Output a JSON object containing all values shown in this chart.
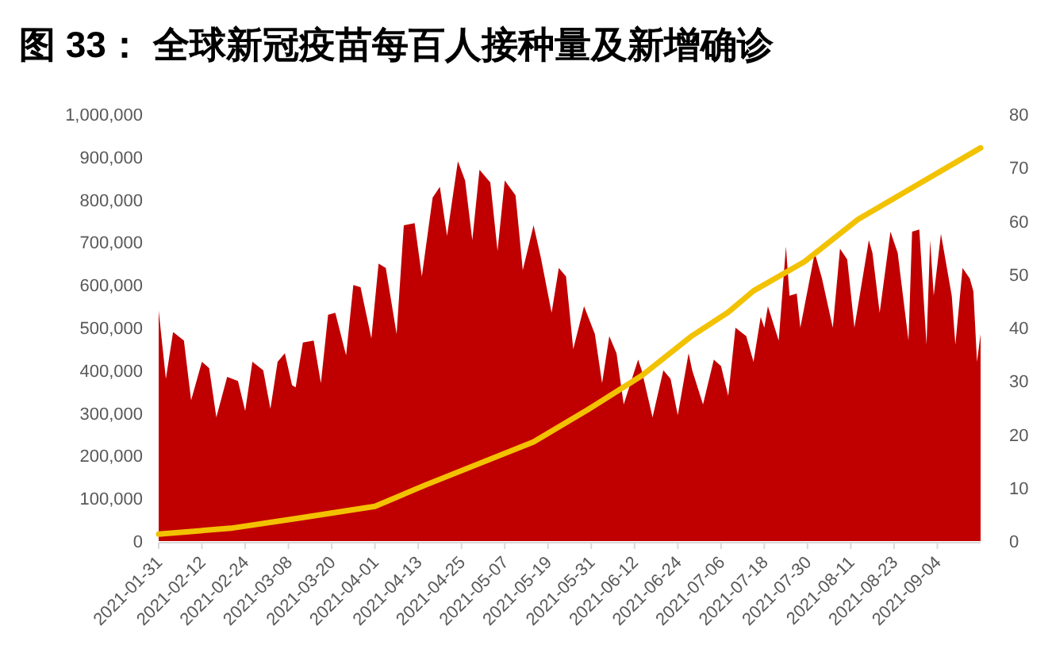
{
  "chart_data": {
    "type": "area",
    "title": "图 33：  全球新冠疫苗每百人接种量及新增确诊",
    "series": [
      {
        "color": "#c00000",
        "x": [
          "2021-01-31",
          "2021-02-02",
          "2021-02-04",
          "2021-02-07",
          "2021-02-09",
          "2021-02-12",
          "2021-02-14",
          "2021-02-16",
          "2021-02-19",
          "2021-02-22",
          "2021-02-24",
          "2021-02-26",
          "2021-03-01",
          "2021-03-03",
          "2021-03-05",
          "2021-03-07",
          "2021-03-09",
          "2021-03-10",
          "2021-03-12",
          "2021-03-15",
          "2021-03-17",
          "2021-03-19",
          "2021-03-21",
          "2021-03-24",
          "2021-03-26",
          "2021-03-28",
          "2021-03-31",
          "2021-04-02",
          "2021-04-04",
          "2021-04-07",
          "2021-04-09",
          "2021-04-12",
          "2021-04-14",
          "2021-04-17",
          "2021-04-19",
          "2021-04-21",
          "2021-04-24",
          "2021-04-26",
          "2021-04-28",
          "2021-04-30",
          "2021-05-03",
          "2021-05-05",
          "2021-05-07",
          "2021-05-10",
          "2021-05-12",
          "2021-05-15",
          "2021-05-17",
          "2021-05-20",
          "2021-05-22",
          "2021-05-24",
          "2021-05-26",
          "2021-05-29",
          "2021-06-01",
          "2021-06-03",
          "2021-06-05",
          "2021-06-07",
          "2021-06-09",
          "2021-06-13",
          "2021-06-14",
          "2021-06-17",
          "2021-06-20",
          "2021-06-22",
          "2021-06-24",
          "2021-06-27",
          "2021-06-28",
          "2021-07-01",
          "2021-07-04",
          "2021-07-06",
          "2021-07-08",
          "2021-07-10",
          "2021-07-13",
          "2021-07-15",
          "2021-07-17",
          "2021-07-18",
          "2021-07-19",
          "2021-07-22",
          "2021-07-24",
          "2021-07-25",
          "2021-07-27",
          "2021-07-28",
          "2021-08-01",
          "2021-08-03",
          "2021-08-06",
          "2021-08-08",
          "2021-08-10",
          "2021-08-12",
          "2021-08-16",
          "2021-08-17",
          "2021-08-19",
          "2021-08-22",
          "2021-08-24",
          "2021-08-27",
          "2021-08-28",
          "2021-08-30",
          "2021-09-01",
          "2021-09-02",
          "2021-09-03",
          "2021-09-05",
          "2021-09-08",
          "2021-09-09",
          "2021-09-11",
          "2021-09-13",
          "2021-09-14",
          "2021-09-15",
          "2021-09-16"
        ],
        "values": [
          540000,
          380000,
          490000,
          470000,
          330000,
          420000,
          405000,
          290000,
          385000,
          375000,
          305000,
          420000,
          400000,
          310000,
          420000,
          440000,
          365000,
          360000,
          465000,
          470000,
          370000,
          530000,
          535000,
          435000,
          600000,
          595000,
          475000,
          650000,
          640000,
          485000,
          740000,
          745000,
          620000,
          805000,
          830000,
          715000,
          890000,
          845000,
          705000,
          870000,
          840000,
          680000,
          845000,
          810000,
          635000,
          740000,
          665000,
          535000,
          640000,
          620000,
          450000,
          550000,
          485000,
          370000,
          480000,
          440000,
          320000,
          425000,
          400000,
          290000,
          400000,
          380000,
          295000,
          440000,
          400000,
          320000,
          425000,
          410000,
          340000,
          500000,
          480000,
          420000,
          525000,
          500000,
          550000,
          470000,
          690000,
          575000,
          580000,
          500000,
          675000,
          615000,
          500000,
          685000,
          660000,
          500000,
          705000,
          675000,
          535000,
          725000,
          675000,
          470000,
          725000,
          730000,
          460000,
          705000,
          575000,
          720000,
          575000,
          460000,
          640000,
          615000,
          585000,
          420000,
          485000
        ]
      },
      {
        "type": "line",
        "axis": "y2",
        "color": "#f2c200",
        "x": [
          "2021-01-31",
          "2021-02-20",
          "2021-03-11",
          "2021-04-01",
          "2021-04-15",
          "2021-05-15",
          "2021-05-30",
          "2021-06-14",
          "2021-06-28",
          "2021-07-08",
          "2021-07-15",
          "2021-07-29",
          "2021-08-13",
          "2021-08-28",
          "2021-09-16"
        ],
        "values": [
          1.3,
          2.4,
          4.3,
          6.5,
          10.5,
          18.6,
          24.6,
          31.0,
          38.5,
          42.9,
          46.9,
          52.3,
          60.3,
          66.2,
          73.7
        ]
      }
    ],
    "xlim": [
      "2021-01-31",
      "2021-09-16"
    ],
    "xticks": [
      "2021-01-31",
      "2021-02-12",
      "2021-02-24",
      "2021-03-08",
      "2021-03-20",
      "2021-04-01",
      "2021-04-13",
      "2021-04-25",
      "2021-05-07",
      "2021-05-19",
      "2021-05-31",
      "2021-06-12",
      "2021-06-24",
      "2021-07-06",
      "2021-07-18",
      "2021-07-30",
      "2021-08-11",
      "2021-08-23",
      "2021-09-04"
    ],
    "ylim": [
      0,
      1000000
    ],
    "yticks": [
      0,
      {
        "value": 100000,
        "label": "100,000"
      },
      {
        "value": 200000,
        "label": "200,000"
      },
      {
        "value": 300000,
        "label": "300,000"
      },
      {
        "value": 400000,
        "label": "400,000"
      },
      {
        "value": 500000,
        "label": "500,000"
      },
      {
        "value": 600000,
        "label": "600,000"
      },
      {
        "value": 700000,
        "label": "700,000"
      },
      {
        "value": 800000,
        "label": "800,000"
      },
      {
        "value": 900000,
        "label": "900,000"
      },
      {
        "value": 1000000,
        "label": "1,000,000"
      }
    ],
    "y2lim": [
      0,
      80
    ],
    "y2ticks": [
      0,
      10,
      20,
      30,
      40,
      50,
      60,
      70,
      80
    ],
    "grid": false
  }
}
